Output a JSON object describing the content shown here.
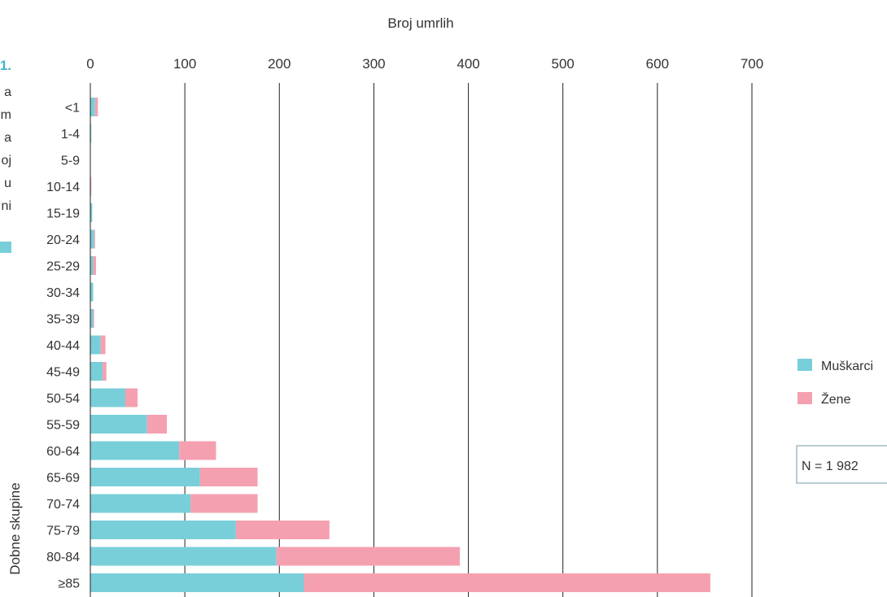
{
  "colors": {
    "muskarci": "#78cfd9",
    "zene": "#f5a0b0",
    "grid": "#222222",
    "box_border": "#7a9aa8"
  },
  "left_fragment": {
    "number": "1.",
    "letters": [
      "a",
      "m",
      "a",
      "oj",
      "u",
      "ni"
    ]
  },
  "note": "N = 1 982",
  "chart_data": {
    "type": "bar",
    "orientation": "horizontal",
    "stacked": true,
    "title": "",
    "xlabel": "Broj umrlih",
    "ylabel": "Dobne skupine",
    "xlim": [
      0,
      700
    ],
    "xticks": [
      "0",
      "100",
      "200",
      "300",
      "400",
      "500",
      "600",
      "700"
    ],
    "categories": [
      "<1",
      "1-4",
      "5-9",
      "10-14",
      "15-19",
      "20-24",
      "25-29",
      "30-34",
      "35-39",
      "40-44",
      "45-49",
      "50-54",
      "55-59",
      "60-64",
      "65-69",
      "70-74",
      "75-79",
      "80-84",
      "≥85"
    ],
    "series": [
      {
        "name": "Muškarci",
        "values": [
          5,
          1,
          0,
          0,
          2,
          4,
          3,
          3,
          3,
          11,
          13,
          37,
          60,
          94,
          116,
          106,
          154,
          197,
          226
        ]
      },
      {
        "name": "Žene",
        "values": [
          3,
          0,
          0,
          1,
          0,
          1,
          3,
          0,
          1,
          5,
          4,
          13,
          21,
          39,
          61,
          71,
          99,
          194,
          430
        ]
      }
    ],
    "grid": true,
    "legend": "right"
  }
}
